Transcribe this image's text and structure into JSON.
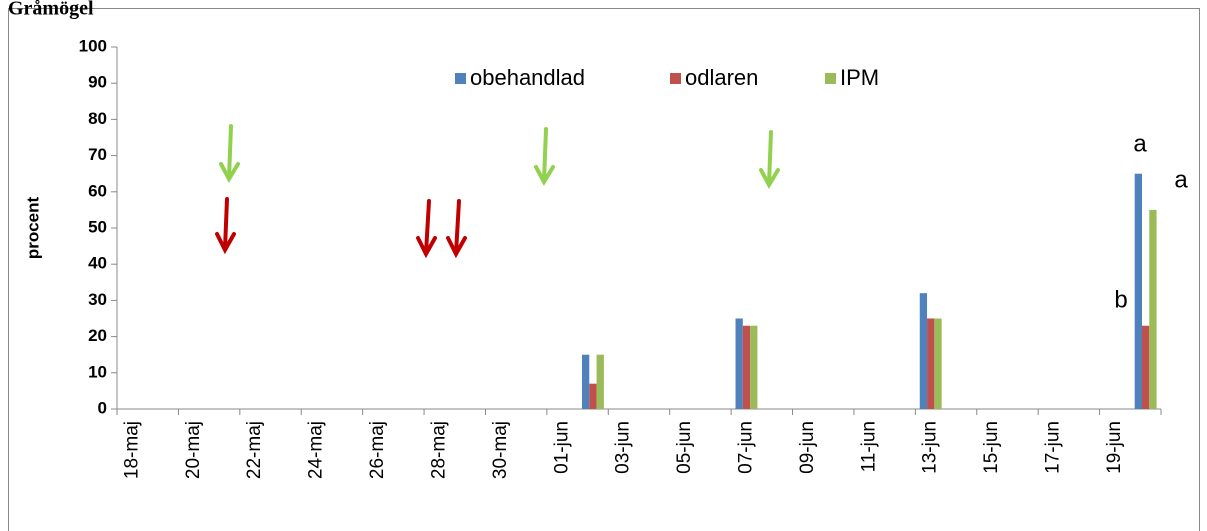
{
  "chart_data": {
    "type": "bar",
    "title": "Gråmögel",
    "ylabel": "procent",
    "categories": [
      "18-maj",
      null,
      "20-maj",
      null,
      "22-maj",
      null,
      "24-maj",
      null,
      "26-maj",
      null,
      "28-maj",
      null,
      "30-maj",
      null,
      "01-jun",
      null,
      "03-jun",
      null,
      "05-jun",
      null,
      "07-jun",
      null,
      "09-jun",
      null,
      "11-jun",
      null,
      "13-jun",
      null,
      "15-jun",
      null,
      "17-jun",
      null,
      "19-jun",
      null
    ],
    "series": [
      {
        "name": "obehandlad",
        "color": "#4f81bd",
        "values": [
          null,
          null,
          null,
          null,
          null,
          null,
          null,
          null,
          null,
          null,
          null,
          null,
          null,
          null,
          null,
          15,
          null,
          null,
          null,
          null,
          25,
          null,
          null,
          null,
          null,
          null,
          32,
          null,
          null,
          null,
          null,
          null,
          null,
          65
        ]
      },
      {
        "name": "odlaren",
        "color": "#c0504d",
        "values": [
          null,
          null,
          null,
          null,
          null,
          null,
          null,
          null,
          null,
          null,
          null,
          null,
          null,
          null,
          null,
          7,
          null,
          null,
          null,
          null,
          23,
          null,
          null,
          null,
          null,
          null,
          25,
          null,
          null,
          null,
          null,
          null,
          null,
          23
        ]
      },
      {
        "name": "IPM",
        "color": "#9bbb59",
        "values": [
          null,
          null,
          null,
          null,
          null,
          null,
          null,
          null,
          null,
          null,
          null,
          null,
          null,
          null,
          null,
          15,
          null,
          null,
          null,
          null,
          23,
          null,
          null,
          null,
          null,
          null,
          25,
          null,
          null,
          null,
          null,
          null,
          null,
          55
        ]
      }
    ],
    "ylim": [
      0,
      100
    ],
    "yticks": [
      0,
      10,
      20,
      30,
      40,
      50,
      60,
      70,
      80,
      90,
      100
    ],
    "grid": false,
    "legend": "top",
    "annotations": [
      "a",
      "a",
      "b"
    ]
  }
}
